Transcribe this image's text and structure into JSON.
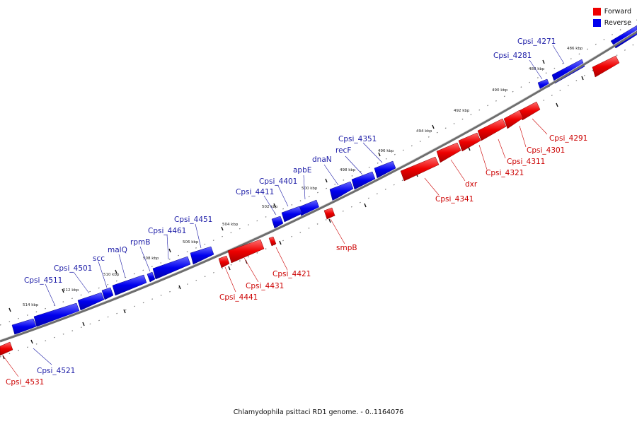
{
  "caption": "Chlamydophila psittaci RD1 genome. - 0..1164076",
  "legend": [
    {
      "label": "Forward",
      "color": "#ee0000"
    },
    {
      "label": "Reverse",
      "color": "#0000ee"
    }
  ],
  "colors": {
    "forward": "#ee0000",
    "reverse": "#0000ee",
    "forward_label": "#cc0000",
    "reverse_label": "#1a1aa6",
    "backbone": "#808080"
  },
  "scale_labels": [
    "486 kbp",
    "488 kbp",
    "490 kbp",
    "492 kbp",
    "494 kbp",
    "496 kbp",
    "498 kbp",
    "500 kbp",
    "502 kbp",
    "504 kbp",
    "506 kbp",
    "508 kbp",
    "510 kbp",
    "512 kbp",
    "514 kbp"
  ],
  "reverse_labels": [
    "Cpsi_4271",
    "Cpsi_4281",
    "Cpsi_4351",
    "recF",
    "dnaN",
    "apbE",
    "Cpsi_4401",
    "Cpsi_4411",
    "Cpsi_4451",
    "Cpsi_4461",
    "rpmB",
    "malQ",
    "scc",
    "Cpsi_4501",
    "Cpsi_4511",
    "Cpsi_4521"
  ],
  "forward_labels": [
    "Cpsi_4291",
    "Cpsi_4301",
    "Cpsi_4311",
    "Cpsi_4321",
    "dxr",
    "Cpsi_4341",
    "smpB",
    "Cpsi_4421",
    "Cpsi_4431",
    "Cpsi_4441",
    "Cpsi_4531"
  ]
}
